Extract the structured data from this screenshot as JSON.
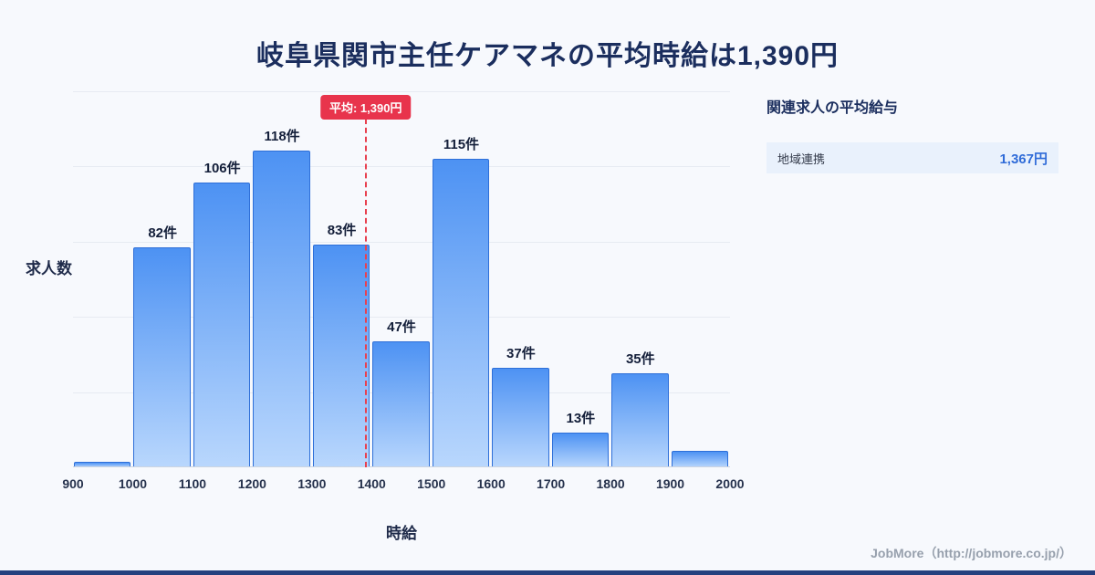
{
  "page": {
    "title": "岐阜県関市主任ケアマネの平均時給は1,390円",
    "footer": "JobMore（http://jobmore.co.jp/）"
  },
  "chart_data": {
    "type": "bar",
    "title": "岐阜県関市主任ケアマネの平均時給は1,390円",
    "xlabel": "時給",
    "ylabel": "求人数",
    "x_ticks": [
      "900",
      "1000",
      "1100",
      "1200",
      "1300",
      "1400",
      "1500",
      "1600",
      "1700",
      "1800",
      "1900",
      "2000"
    ],
    "bin_ranges": [
      "900-1000",
      "1000-1100",
      "1100-1200",
      "1200-1300",
      "1300-1400",
      "1400-1500",
      "1500-1600",
      "1600-1700",
      "1700-1800",
      "1800-1900",
      "1900-2000"
    ],
    "values": [
      2,
      82,
      106,
      118,
      83,
      47,
      115,
      37,
      13,
      35,
      6
    ],
    "labels": [
      "",
      "82件",
      "106件",
      "118件",
      "83件",
      "47件",
      "115件",
      "37件",
      "13件",
      "35件",
      ""
    ],
    "ylim": [
      0,
      140
    ],
    "xlim": [
      900,
      2000
    ],
    "grid": true,
    "legend": "none",
    "average": {
      "value": 1390,
      "label": "平均: 1,390円"
    },
    "colors": {
      "bar_top": "#4d92f3",
      "bar_bottom": "#b9d7fd",
      "bar_border": "#2e6fd8",
      "average_line": "#e8344c",
      "title_text": "#1b2e5e"
    }
  },
  "side_panel": {
    "heading": "関連求人の平均給与",
    "rows": [
      {
        "label": "地域連携",
        "value": "1,367円"
      }
    ]
  }
}
